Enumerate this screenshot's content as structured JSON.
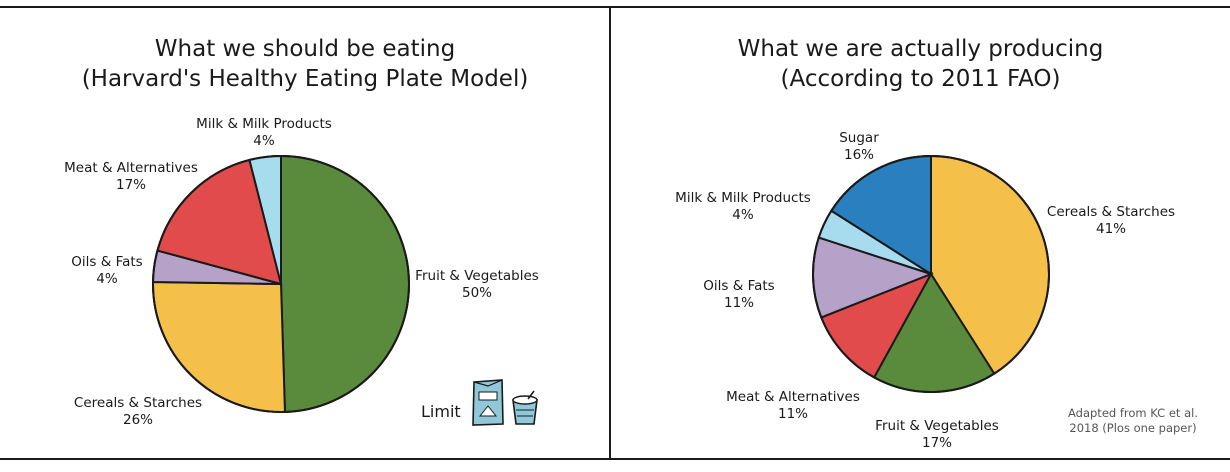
{
  "chart_data": [
    {
      "type": "pie",
      "title": "What we should be eating",
      "subtitle": "(Harvard's Healthy Eating Plate Model)",
      "slices": [
        {
          "label": "Fruit & Vegetables",
          "value": 50,
          "value_label": "50%",
          "color": "#5a8a3c"
        },
        {
          "label": "Cereals & Starches",
          "value": 26,
          "value_label": "26%",
          "color": "#f5c04a"
        },
        {
          "label": "Oils & Fats",
          "value": 4,
          "value_label": "4%",
          "color": "#b6a2c9"
        },
        {
          "label": "Meat & Alternatives",
          "value": 17,
          "value_label": "17%",
          "color": "#e14b4b"
        },
        {
          "label": "Milk & Milk Products",
          "value": 4,
          "value_label": "4%",
          "color": "#a7dcef"
        }
      ],
      "start": "12 o'clock",
      "direction": "clockwise"
    },
    {
      "type": "pie",
      "title": "What we are actually producing",
      "subtitle": "(According to 2011 FAO)",
      "slices": [
        {
          "label": "Cereals & Starches",
          "value": 41,
          "value_label": "41%",
          "color": "#f5c04a"
        },
        {
          "label": "Fruit & Vegetables",
          "value": 17,
          "value_label": "17%",
          "color": "#5a8a3c"
        },
        {
          "label": "Meat & Alternatives",
          "value": 11,
          "value_label": "11%",
          "color": "#e14b4b"
        },
        {
          "label": "Oils & Fats",
          "value": 11,
          "value_label": "11%",
          "color": "#b6a2c9"
        },
        {
          "label": "Milk & Milk Products",
          "value": 4,
          "value_label": "4%",
          "color": "#a7dcef"
        },
        {
          "label": "Sugar",
          "value": 16,
          "value_label": "16%",
          "color": "#2a7fbf"
        }
      ],
      "start": "12 o'clock",
      "direction": "clockwise"
    }
  ],
  "legend": {
    "limit_label": "Limit",
    "limit_icons": [
      "sugar-bag-icon",
      "soda-cup-icon"
    ]
  },
  "source_note": [
    "Adapted from KC et al.",
    "2018 (Plos one paper)"
  ]
}
